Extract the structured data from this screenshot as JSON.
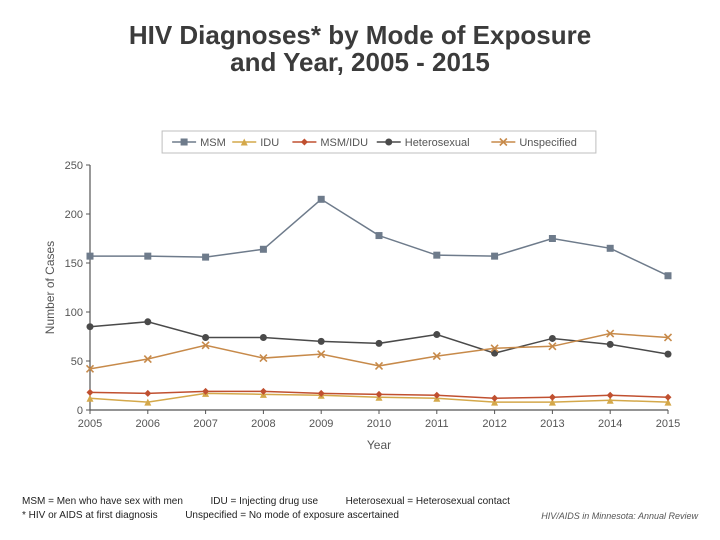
{
  "title_line1": "HIV Diagnoses* by Mode of Exposure",
  "title_line2": "and Year, 2005 - 2015",
  "title_fontsize": 26,
  "title_color": "#3b3b3b",
  "chart": {
    "type": "line",
    "background_color": "#ffffff",
    "plot_background": "#ffffff",
    "plot_border_color": "#808080",
    "axis_color": "#555555",
    "tick_fontsize": 11,
    "tick_color": "#555555",
    "xlabel": "Year",
    "ylabel": "Number of Cases",
    "label_fontsize": 12,
    "label_color": "#555555",
    "xlim": [
      2005,
      2015
    ],
    "ylim": [
      0,
      250
    ],
    "ytick_step": 50,
    "categories": [
      "2005",
      "2006",
      "2007",
      "2008",
      "2009",
      "2010",
      "2011",
      "2012",
      "2013",
      "2014",
      "2015"
    ],
    "legend": {
      "position": "top",
      "fontsize": 11,
      "box_color": "#bfbfbf",
      "text_color": "#555555"
    },
    "series": [
      {
        "name": "MSM",
        "marker": "square",
        "color": "#6e7b8b",
        "line_width": 1.5,
        "values": [
          157,
          157,
          156,
          164,
          215,
          178,
          158,
          157,
          175,
          165,
          137
        ]
      },
      {
        "name": "IDU",
        "marker": "triangle",
        "color": "#d4a84a",
        "line_width": 1.5,
        "values": [
          12,
          8,
          17,
          16,
          15,
          13,
          12,
          8,
          8,
          10,
          8
        ]
      },
      {
        "name": "MSM/IDU",
        "marker": "diamond",
        "color": "#c05030",
        "line_width": 1.5,
        "values": [
          18,
          17,
          19,
          19,
          17,
          16,
          15,
          12,
          13,
          15,
          13
        ]
      },
      {
        "name": "Heterosexual",
        "marker": "circle",
        "color": "#4a4a4a",
        "line_width": 1.5,
        "values": [
          85,
          90,
          74,
          74,
          70,
          68,
          77,
          58,
          73,
          67,
          57
        ]
      },
      {
        "name": "Unspecified",
        "marker": "x",
        "color": "#c78a4a",
        "line_width": 1.5,
        "values": [
          42,
          52,
          66,
          53,
          57,
          45,
          55,
          63,
          65,
          78,
          74
        ]
      }
    ]
  },
  "foot": {
    "line1a": "MSM = Men who have sex with men",
    "line1b": "IDU = Injecting drug use",
    "line1c": "Heterosexual = Heterosexual contact",
    "line2a": "* HIV or AIDS at first diagnosis",
    "line2b": "Unspecified = No mode of exposure ascertained",
    "source": "HIV/AIDS in Minnesota: Annual Review"
  }
}
